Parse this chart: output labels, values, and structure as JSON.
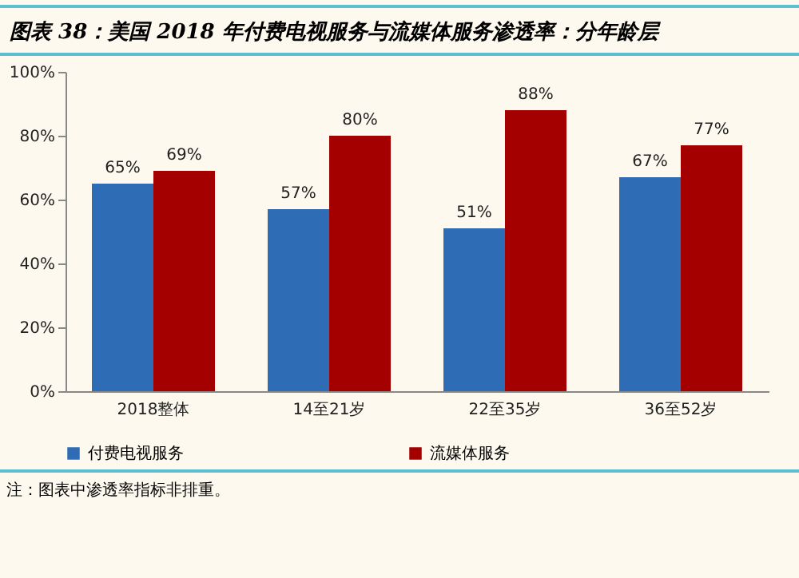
{
  "chart_data": {
    "type": "bar",
    "title": "图表 38：美国 2018 年付费电视服务与流媒体服务渗透率：分年龄层",
    "categories": [
      "2018整体",
      "14至21岁",
      "22至35岁",
      "36至52岁"
    ],
    "series": [
      {
        "name": "付费电视服务",
        "color": "#2e6cb5",
        "values": [
          65,
          57,
          51,
          67
        ],
        "value_labels": [
          "65%",
          "57%",
          "51%",
          "67%"
        ]
      },
      {
        "name": "流媒体服务",
        "color": "#a50000",
        "values": [
          69,
          80,
          88,
          77
        ],
        "value_labels": [
          "69%",
          "80%",
          "88%",
          "77%"
        ]
      }
    ],
    "ylim": [
      0,
      100
    ],
    "yticks": [
      {
        "value": 0,
        "label": "0%"
      },
      {
        "value": 20,
        "label": "20%"
      },
      {
        "value": 40,
        "label": "40%"
      },
      {
        "value": 60,
        "label": "60%"
      },
      {
        "value": 80,
        "label": "80%"
      },
      {
        "value": 100,
        "label": "100%"
      }
    ],
    "grid": false,
    "legend": "bottom",
    "annotations": [
      "注：图表中渗透率指标非排重。"
    ]
  }
}
